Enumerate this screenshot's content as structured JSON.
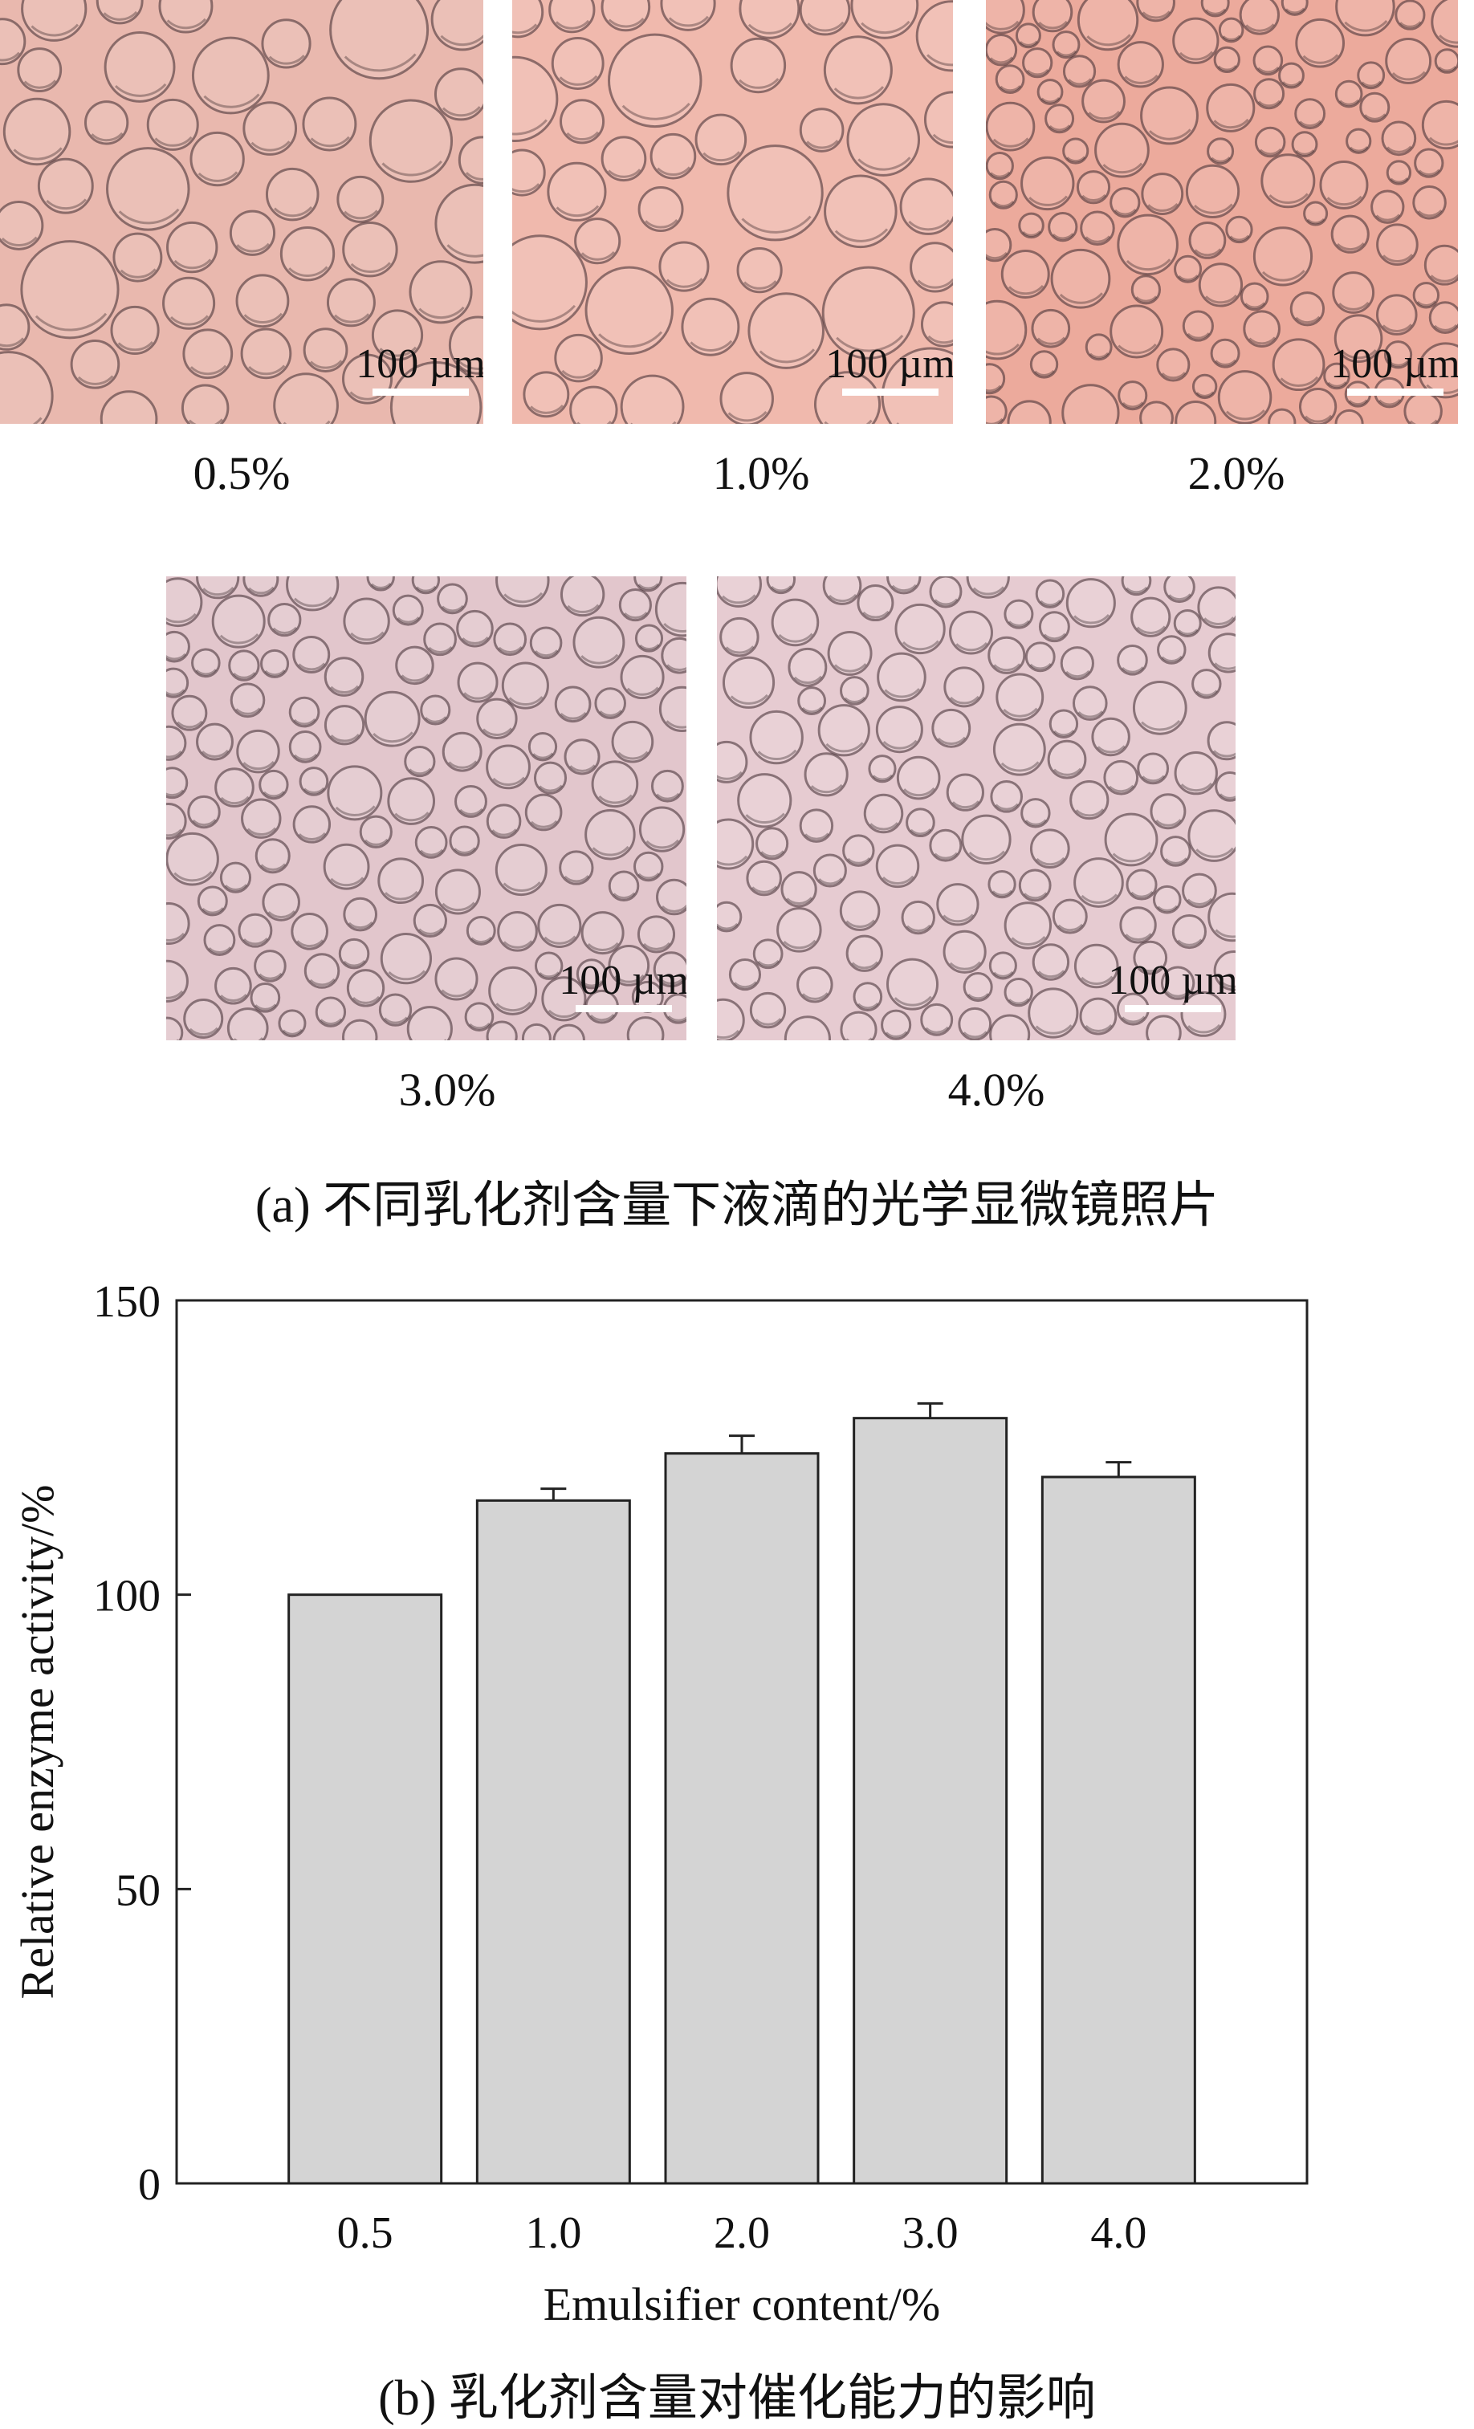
{
  "micrographs": {
    "scale_label": "100 µm",
    "panels": [
      {
        "label": "0.5%",
        "tint": "#e9b8ae"
      },
      {
        "label": "1.0%",
        "tint": "#f0b9ad"
      },
      {
        "label": "2.0%",
        "tint": "#ecaa9c"
      },
      {
        "label": "3.0%",
        "tint": "#e2c6cc"
      },
      {
        "label": "4.0%",
        "tint": "#e6cbd1"
      }
    ],
    "caption": "(a) 不同乳化剂含量下液滴的光学显微镜照片"
  },
  "chart_caption": "(b) 乳化剂含量对催化能力的影响",
  "chart_data": {
    "type": "bar",
    "categories": [
      "0.5",
      "1.0",
      "2.0",
      "3.0",
      "4.0"
    ],
    "values": [
      100,
      116,
      124,
      130,
      120
    ],
    "errors": [
      0,
      2,
      3,
      2.5,
      2.5
    ],
    "xlabel": "Emulsifier content/%",
    "ylabel": "Relative enzyme activity/%",
    "ylim": [
      0,
      150
    ],
    "yticks": [
      0,
      50,
      100,
      150
    ],
    "bar_color": "#d4d4d4",
    "grid": false
  }
}
